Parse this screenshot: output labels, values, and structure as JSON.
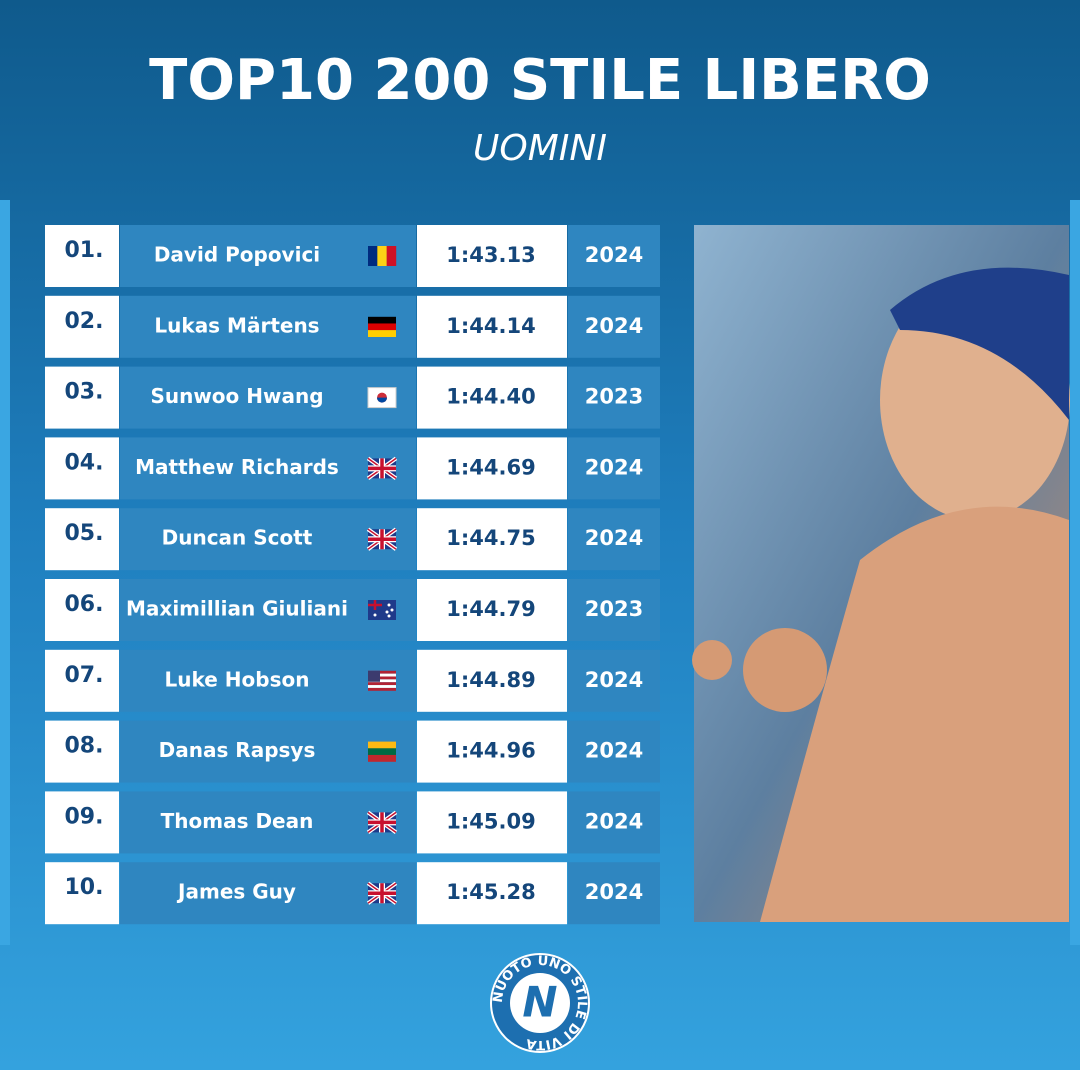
{
  "header": {
    "title": "TOP10 200 STILE LIBERO",
    "subtitle": "UOMINI"
  },
  "table": {
    "rows": [
      {
        "rank": "01.",
        "name": "David Popovici",
        "time": "1:43.13",
        "year": "2024"
      },
      {
        "rank": "02.",
        "name": "Lukas Märtens",
        "time": "1:44.14",
        "year": "2024"
      },
      {
        "rank": "03.",
        "name": "Sunwoo Hwang",
        "time": "1:44.40",
        "year": "2023"
      },
      {
        "rank": "04.",
        "name": "Matthew Richards",
        "time": "1:44.69",
        "year": "2024"
      },
      {
        "rank": "05.",
        "name": "Duncan Scott",
        "time": "1:44.75",
        "year": "2024"
      },
      {
        "rank": "06.",
        "name": "Maximillian Giuliani",
        "time": "1:44.79",
        "year": "2023"
      },
      {
        "rank": "07.",
        "name": "Luke Hobson",
        "time": "1:44.89",
        "year": "2024"
      },
      {
        "rank": "08.",
        "name": "Danas Rapsys",
        "time": "1:44.96",
        "year": "2024"
      },
      {
        "rank": "09.",
        "name": "Thomas Dean",
        "time": "1:45.09",
        "year": "2024"
      },
      {
        "rank": "10.",
        "name": "James Guy",
        "time": "1:45.28",
        "year": "2024"
      }
    ]
  },
  "logo": {
    "ring_text": "NUOTO UNO STILE DI VITA",
    "letter": "N"
  }
}
